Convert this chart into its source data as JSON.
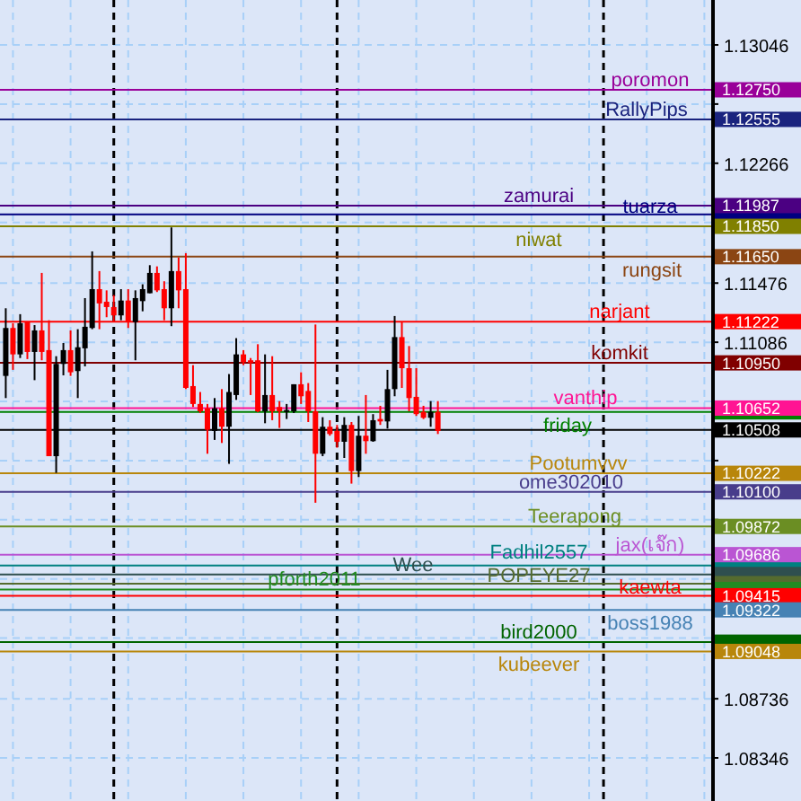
{
  "chart_data": {
    "type": "candlestick",
    "categories": [
      null,
      null,
      null,
      null,
      null,
      null,
      null,
      null,
      null,
      null,
      null,
      null,
      null,
      null,
      null,
      null,
      null,
      null,
      null,
      null,
      null,
      null,
      null,
      null,
      null,
      null,
      null,
      null,
      null,
      null,
      null,
      null,
      null,
      null,
      null,
      null,
      null,
      null,
      null,
      null,
      null,
      null,
      null,
      null,
      null,
      null,
      null,
      null,
      null,
      null,
      null,
      null,
      null,
      null,
      null,
      null,
      null,
      null,
      null,
      null,
      null,
      null,
      null,
      null,
      null,
      null,
      null,
      null,
      null,
      null,
      null,
      null,
      null,
      null,
      null,
      null,
      null,
      null,
      null,
      null,
      null,
      null,
      null,
      null,
      null,
      null,
      null,
      null,
      null,
      null,
      null,
      null,
      null,
      null,
      null,
      null,
      null,
      null,
      null
    ],
    "ohlc": [
      [
        1.10864,
        1.1131,
        1.10718,
        1.1118
      ],
      [
        1.1118,
        1.11211,
        1.10904,
        1.11006
      ],
      [
        1.11006,
        1.11271,
        1.10982,
        1.11211
      ],
      [
        1.11219,
        1.11219,
        1.10975,
        1.11022
      ],
      [
        1.11022,
        1.11199,
        1.10836,
        1.11164
      ],
      [
        1.11164,
        1.11543,
        1.10967,
        1.11022
      ],
      [
        1.11034,
        1.11231,
        1.10335,
        1.10335
      ],
      [
        1.10335,
        1.10994,
        1.10225,
        1.10943
      ],
      [
        1.10943,
        1.11081,
        1.10868,
        1.11034
      ],
      [
        1.11034,
        1.11164,
        1.10864,
        1.10888
      ],
      [
        1.10896,
        1.11172,
        1.10718,
        1.11053
      ],
      [
        1.11046,
        1.11377,
        1.10927,
        1.11188
      ],
      [
        1.1118,
        1.11685,
        1.11172,
        1.11436
      ],
      [
        1.11436,
        1.11555,
        1.11172,
        1.11342
      ],
      [
        1.11353,
        1.11428,
        1.11251,
        1.11318
      ],
      [
        1.11318,
        1.11397,
        1.11219,
        1.11263
      ],
      [
        1.11263,
        1.11436,
        1.11231,
        1.11361
      ],
      [
        1.11361,
        1.11436,
        1.1118,
        1.11219
      ],
      [
        1.11219,
        1.11428,
        1.10967,
        1.11377
      ],
      [
        1.11357,
        1.11468,
        1.1129,
        1.11436
      ],
      [
        1.11409,
        1.11594,
        1.11409,
        1.11543
      ],
      [
        1.11543,
        1.11586,
        1.11417,
        1.11428
      ],
      [
        1.11436,
        1.11488,
        1.11231,
        1.1131
      ],
      [
        1.1131,
        1.11843,
        1.11192,
        1.11555
      ],
      [
        1.11555,
        1.11645,
        1.1131,
        1.11428
      ],
      [
        1.11436,
        1.11673,
        1.10777,
        1.10785
      ],
      [
        1.10797,
        1.10935,
        1.10659,
        1.10679
      ],
      [
        1.10679,
        1.10758,
        1.10619,
        1.10631
      ],
      [
        1.10651,
        1.10679,
        1.10351,
        1.10509
      ],
      [
        1.10501,
        1.10718,
        1.10442,
        1.10651
      ],
      [
        1.10651,
        1.10777,
        1.10422,
        1.10529
      ],
      [
        1.10529,
        1.10876,
        1.10284,
        1.10758
      ],
      [
        1.10738,
        1.11113,
        1.10706,
        1.11006
      ],
      [
        1.11006,
        1.11034,
        1.10935,
        1.10955
      ],
      [
        1.10967,
        1.10982,
        1.10738,
        1.10951
      ],
      [
        1.10967,
        1.11073,
        1.10625,
        1.10631
      ],
      [
        1.10631,
        1.11006,
        1.10552,
        1.10738
      ],
      [
        1.10738,
        1.10994,
        1.10572,
        1.10631
      ],
      [
        1.10659,
        1.10698,
        1.10521,
        1.10631
      ],
      [
        1.10627,
        1.10679,
        1.1058,
        1.10639
      ],
      [
        1.10631,
        1.10809,
        1.10619,
        1.10809
      ],
      [
        1.10809,
        1.10888,
        1.10679,
        1.1073
      ],
      [
        1.10765,
        1.10817,
        1.1056,
        1.10631
      ],
      [
        1.10631,
        1.11203,
        1.10028,
        1.10351
      ],
      [
        1.10351,
        1.10592,
        1.10335,
        1.10529
      ],
      [
        1.10529,
        1.10572,
        1.1047,
        1.10481
      ],
      [
        1.10501,
        1.10541,
        1.10391,
        1.1043
      ],
      [
        1.1043,
        1.10592,
        1.10323,
        1.10541
      ],
      [
        1.10541,
        1.1056,
        1.10154,
        1.10237
      ],
      [
        1.10237,
        1.106,
        1.10197,
        1.1047
      ],
      [
        1.1047,
        1.10738,
        1.10351,
        1.10434
      ],
      [
        1.10434,
        1.10612,
        1.1043,
        1.10572
      ],
      [
        1.1058,
        1.10667,
        1.10541,
        1.10564
      ],
      [
        1.10564,
        1.10904,
        1.10517,
        1.10777
      ],
      [
        1.10777,
        1.11259,
        1.1073,
        1.1112
      ],
      [
        1.1112,
        1.11219,
        1.10785,
        1.10915
      ],
      [
        1.10915,
        1.11061,
        1.10631,
        1.10718
      ],
      [
        1.10726,
        1.10915,
        1.106,
        1.10612
      ],
      [
        1.10627,
        1.10667,
        1.1058,
        1.10588
      ],
      [
        1.10588,
        1.10698,
        1.10529,
        1.10627
      ],
      [
        1.10627,
        1.10698,
        1.10481,
        1.10501
      ],
      null,
      null,
      null,
      null,
      null,
      null,
      null,
      null,
      null,
      null,
      null,
      null,
      null,
      null,
      null,
      null,
      null,
      null,
      null,
      null,
      null,
      null,
      null,
      null,
      null,
      null,
      null,
      null,
      null,
      null,
      null,
      null,
      null,
      null,
      null,
      null,
      null,
      null
    ],
    "ylim": [
      1.08062,
      1.13342
    ],
    "yticks": [
      1.13046,
      {
        "value": 1.12656,
        "label": null
      },
      1.12266,
      {
        "value": 1.11876,
        "label": null
      },
      1.11476,
      1.11086,
      {
        "value": 1.10696,
        "label": null
      },
      {
        "value": 1.10306,
        "label": null
      },
      {
        "value": 1.09916,
        "label": null
      },
      {
        "value": 1.09526,
        "label": null
      },
      {
        "value": 1.09136,
        "label": null
      },
      1.08736,
      1.08346,
      {
        "value": 1.1275,
        "label": "1.12750"
      },
      {
        "value": 1.12555,
        "label": "1.12555"
      },
      {
        "value": 1.11987,
        "label": "1.11987"
      },
      {
        "value": 1.11929,
        "label": null
      },
      {
        "value": 1.1185,
        "label": "1.11850"
      },
      {
        "value": 1.1165,
        "label": "1.11650"
      },
      {
        "value": 1.11222,
        "label": "1.11222"
      },
      {
        "value": 1.1095,
        "label": "1.10950"
      },
      {
        "value": 1.10652,
        "label": "1.10652"
      },
      {
        "value": 1.10627,
        "label": null
      },
      {
        "value": 1.10508,
        "label": "1.10508"
      },
      {
        "value": 1.10222,
        "label": "1.10222"
      },
      {
        "value": 1.101,
        "label": "1.10100"
      },
      {
        "value": 1.09872,
        "label": "1.09872"
      },
      {
        "value": 1.09686,
        "label": "1.09686"
      },
      {
        "value": 1.09615,
        "label": null
      },
      {
        "value": 1.09555,
        "label": null
      },
      {
        "value": 1.09495,
        "label": null
      },
      {
        "value": 1.09456,
        "label": null
      },
      {
        "value": 1.09415,
        "label": "1.09415"
      },
      {
        "value": 1.09322,
        "label": "1.09322"
      },
      {
        "value": 1.09109,
        "label": null
      },
      {
        "value": 1.09048,
        "label": "1.09048"
      }
    ],
    "grid": true,
    "ref_lines": [
      {
        "axis": "y",
        "value": 1.1275,
        "label": "poromon",
        "color": "#990099"
      },
      {
        "axis": "y",
        "value": 1.12555,
        "label": "RallyPips",
        "color": "#1a237e"
      },
      {
        "axis": "y",
        "value": 1.11987,
        "label": "zamurai",
        "color": "#4b0082"
      },
      {
        "axis": "y",
        "value": 1.11929,
        "label": "tuarza",
        "color": "#000080"
      },
      {
        "axis": "y",
        "value": 1.1185,
        "label": "niwat",
        "color": "#808000"
      },
      {
        "axis": "y",
        "value": 1.1165,
        "label": "rungsit",
        "color": "#8b4513"
      },
      {
        "axis": "y",
        "value": 1.11222,
        "label": "narjant",
        "color": "#ff0000"
      },
      {
        "axis": "y",
        "value": 1.1095,
        "label": "komkit",
        "color": "#800000"
      },
      {
        "axis": "y",
        "value": 1.10627,
        "label": "friday",
        "color": "#008000"
      },
      {
        "axis": "y",
        "value": 1.10652,
        "label": "vanthip",
        "color": "#ff1493"
      },
      {
        "axis": "y",
        "value": 1.10508,
        "label": null,
        "color": "#000000"
      },
      {
        "axis": "y",
        "value": 1.10222,
        "label": "Pootumvvv",
        "color": "#b8860b"
      },
      {
        "axis": "y",
        "value": 1.101,
        "label": "ome302010",
        "color": "#483d8b"
      },
      {
        "axis": "y",
        "value": 1.09872,
        "label": "Teerapong",
        "color": "#6b8e23"
      },
      {
        "axis": "y",
        "value": 1.09686,
        "label": "jax(เจ๊ก)",
        "color": "#ba55d3"
      },
      {
        "axis": "y",
        "value": 1.09615,
        "label": "Fadhil2557",
        "color": "#008080"
      },
      {
        "axis": "y",
        "value": 1.09555,
        "label": "Wee",
        "color": "#2f4f4f"
      },
      {
        "axis": "y",
        "value": 1.09495,
        "label": "POPEYE27",
        "color": "#556b2f"
      },
      {
        "axis": "y",
        "value": 1.09456,
        "label": "pforth2011",
        "color": "#228b22"
      },
      {
        "axis": "y",
        "value": 1.09415,
        "label": "kaewta",
        "color": "#ff0000"
      },
      {
        "axis": "y",
        "value": 1.09322,
        "label": "boss1988",
        "color": "#4682b4"
      },
      {
        "axis": "y",
        "value": 1.09109,
        "label": "bird2000",
        "color": "#006400"
      },
      {
        "axis": "y",
        "value": 1.09048,
        "label": "kubeever",
        "color": "#b8860b"
      }
    ]
  }
}
